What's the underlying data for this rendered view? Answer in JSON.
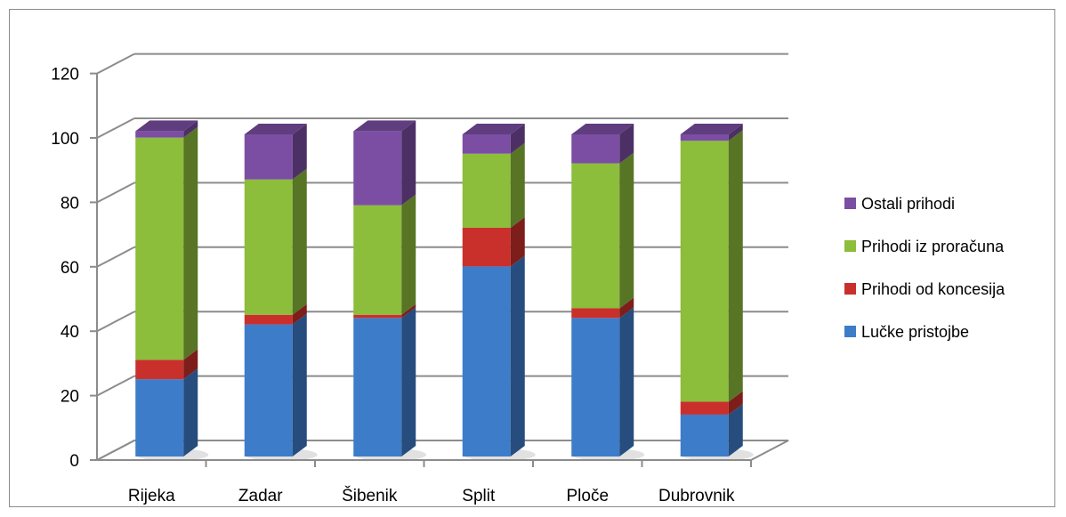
{
  "chart_data": {
    "type": "bar",
    "stacked": true,
    "three_d": true,
    "categories": [
      "Rijeka",
      "Zadar",
      "Šibenik",
      "Split",
      "Ploče",
      "Dubrovnik"
    ],
    "series": [
      {
        "name": "Lučke pristojbe",
        "color": "#3d7cc9",
        "values": [
          24,
          41,
          43,
          59,
          43,
          13
        ]
      },
      {
        "name": "Prihodi od koncesija",
        "color": "#c9302c",
        "values": [
          6,
          3,
          1,
          12,
          3,
          4
        ]
      },
      {
        "name": "Prihodi iz proračuna",
        "color": "#8cbd3b",
        "values": [
          69,
          42,
          34,
          23,
          45,
          81
        ]
      },
      {
        "name": "Ostali prihodi",
        "color": "#7b4ea3",
        "values": [
          2,
          14,
          23,
          6,
          9,
          2
        ]
      }
    ],
    "yticks": [
      "0",
      "20",
      "40",
      "60",
      "80",
      "100",
      "120"
    ],
    "ylim": [
      0,
      120
    ],
    "grid": true,
    "legend_position": "right"
  }
}
